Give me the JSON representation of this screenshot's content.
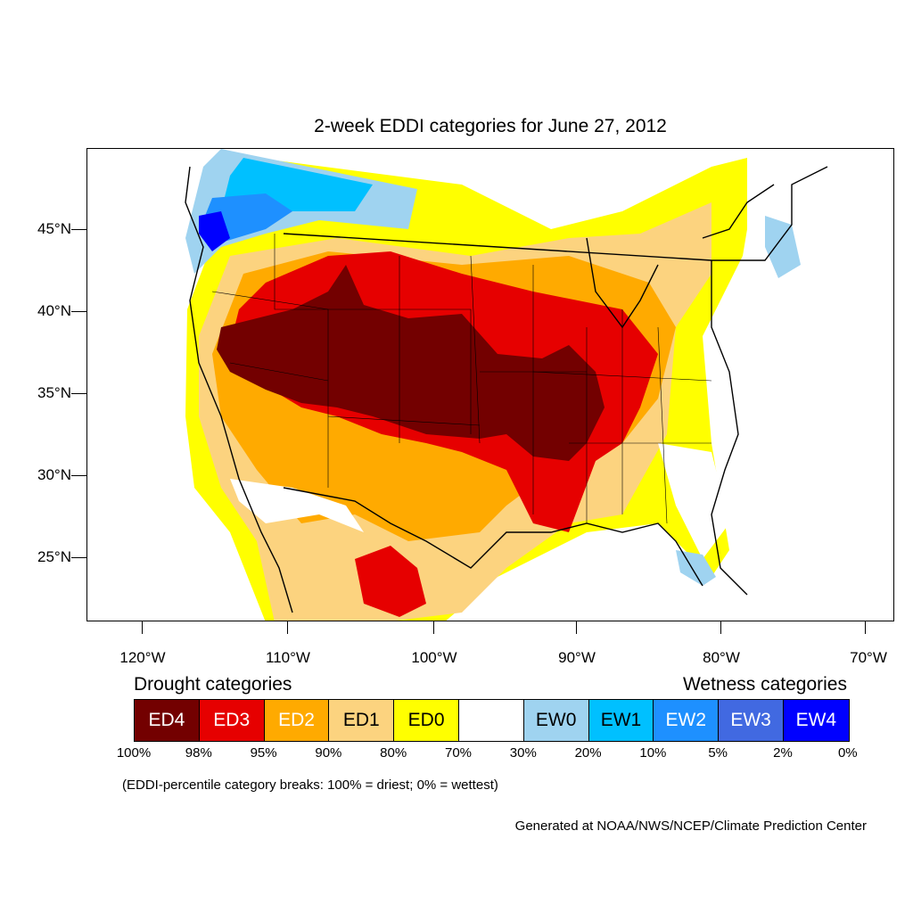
{
  "title": "2-week EDDI categories for June 27, 2012",
  "lat_ticks": [
    "45°N",
    "40°N",
    "35°N",
    "30°N",
    "25°N"
  ],
  "lon_ticks": [
    "120°W",
    "110°W",
    "100°W",
    "90°W",
    "80°W",
    "70°W"
  ],
  "legend": {
    "drought_heading": "Drought categories",
    "wetness_heading": "Wetness categories",
    "categories": [
      {
        "label": "ED4",
        "color": "#730000",
        "text_color": "#ffffff"
      },
      {
        "label": "ED3",
        "color": "#e60000",
        "text_color": "#ffffff"
      },
      {
        "label": "ED2",
        "color": "#ffaa00",
        "text_color": "#ffffff"
      },
      {
        "label": "ED1",
        "color": "#fcd37f",
        "text_color": "#000000"
      },
      {
        "label": "ED0",
        "color": "#ffff00",
        "text_color": "#000000"
      },
      {
        "label": "",
        "color": "#ffffff",
        "text_color": "#000000"
      },
      {
        "label": "EW0",
        "color": "#9fd3f0",
        "text_color": "#000000"
      },
      {
        "label": "EW1",
        "color": "#00c0ff",
        "text_color": "#000000"
      },
      {
        "label": "EW2",
        "color": "#1e90ff",
        "text_color": "#ffffff"
      },
      {
        "label": "EW3",
        "color": "#4169e1",
        "text_color": "#ffffff"
      },
      {
        "label": "EW4",
        "color": "#0000ff",
        "text_color": "#ffffff"
      }
    ],
    "breaks": [
      "100%",
      "98%",
      "95%",
      "90%",
      "80%",
      "70%",
      "30%",
      "20%",
      "10%",
      "5%",
      "2%",
      "0%"
    ]
  },
  "note": "(EDDI-percentile category breaks: 100% = driest; 0% = wettest)",
  "credit": "Generated at NOAA/NWS/NCEP/Climate Prediction Center"
}
